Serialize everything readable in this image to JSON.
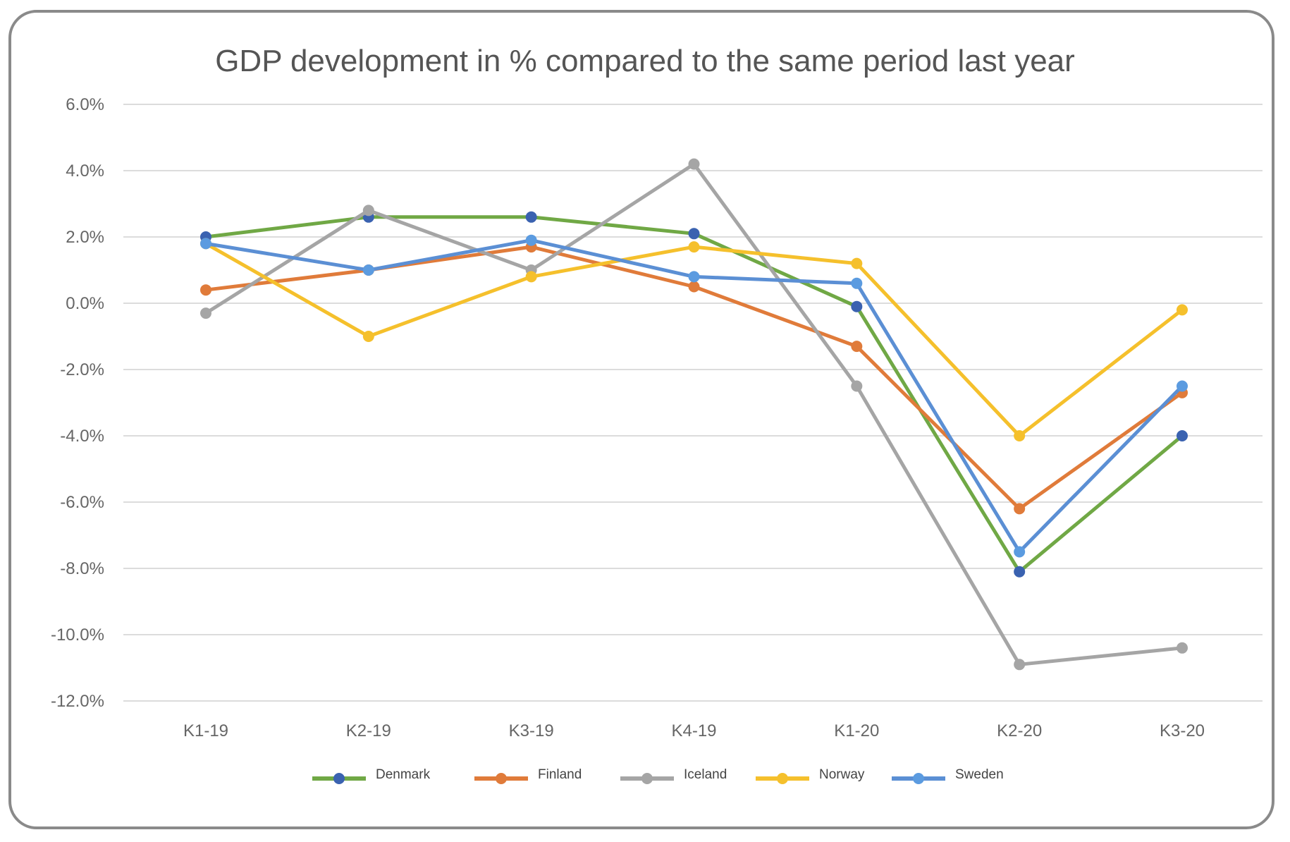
{
  "chart_data": {
    "type": "line",
    "title": "GDP development in % compared to the same period last year",
    "xlabel": "",
    "ylabel": "",
    "categories": [
      "K1-19",
      "K2-19",
      "K3-19",
      "K4-19",
      "K1-20",
      "K2-20",
      "K3-20"
    ],
    "ylim": [
      -12,
      6
    ],
    "yticks": [
      6,
      4,
      2,
      0,
      -2,
      -4,
      -6,
      -8,
      -10,
      -12
    ],
    "ytick_labels": [
      "6.0%",
      "4.0%",
      "2.0%",
      "0.0%",
      "-2.0%",
      "-4.0%",
      "-6.0%",
      "-8.0%",
      "-10.0%",
      "-12.0%"
    ],
    "grid": true,
    "legend_position": "bottom",
    "series": [
      {
        "name": "Denmark",
        "color": "#70a845",
        "marker_color": "#3a62b0",
        "values": [
          2.0,
          2.6,
          2.6,
          2.1,
          -0.1,
          -8.1,
          -4.0
        ]
      },
      {
        "name": "Finland",
        "color": "#e07b3a",
        "marker_color": "#e07b3a",
        "values": [
          0.4,
          1.0,
          1.7,
          0.5,
          -1.3,
          -6.2,
          -2.7
        ]
      },
      {
        "name": "Iceland",
        "color": "#a5a5a5",
        "marker_color": "#a5a5a5",
        "values": [
          -0.3,
          2.8,
          1.0,
          4.2,
          -2.5,
          -10.9,
          -10.4
        ]
      },
      {
        "name": "Norway",
        "color": "#f5c02c",
        "marker_color": "#f5c02c",
        "values": [
          1.8,
          -1.0,
          0.8,
          1.7,
          1.2,
          -4.0,
          -0.2
        ]
      },
      {
        "name": "Sweden",
        "color": "#5b8fd4",
        "marker_color": "#5b9be0",
        "values": [
          1.8,
          1.0,
          1.9,
          0.8,
          0.6,
          -7.5,
          -2.5
        ]
      }
    ]
  }
}
